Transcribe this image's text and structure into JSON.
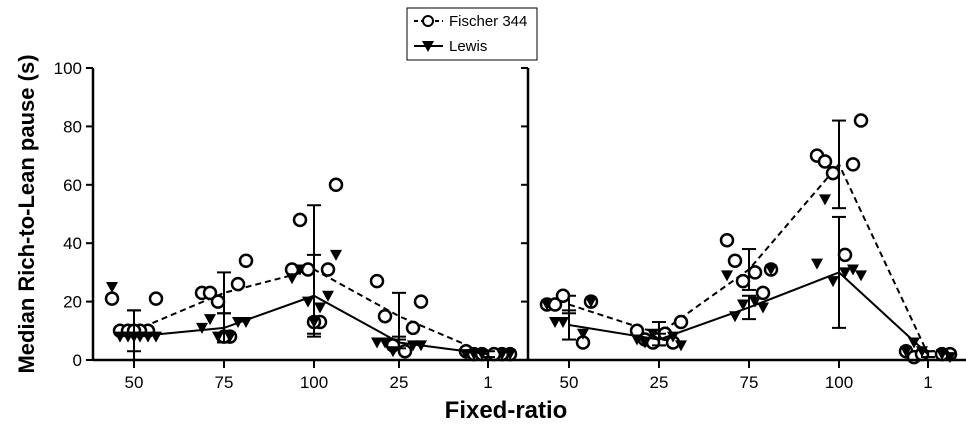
{
  "chart_data": {
    "type": "scatter",
    "ylabel": "Median Rich-to-Lean pause (s)",
    "xlabel": "Fixed-ratio",
    "ylim": [
      0,
      100
    ],
    "yticks": [
      0,
      20,
      40,
      60,
      80,
      100
    ],
    "legend": {
      "placement": "top-center",
      "entries": [
        {
          "name": "Fischer 344",
          "style": "dashed",
          "marker": "open-circle"
        },
        {
          "name": "Lewis",
          "style": "solid",
          "marker": "filled-triangle-down"
        }
      ]
    },
    "panels": [
      {
        "categories": [
          "50",
          "75",
          "100",
          "25",
          "1"
        ],
        "series": [
          {
            "name": "Fischer 344",
            "median": [
              10,
              23,
              31,
              15,
              2
            ],
            "error": [
              7,
              7,
              22,
              8,
              1
            ],
            "points": [
              [
                21,
                21,
                10,
                10,
                10,
                10,
                10
              ],
              [
                23,
                34,
                23,
                26,
                20,
                8,
                8
              ],
              [
                31,
                60,
                48,
                31,
                31,
                13,
                13
              ],
              [
                27,
                20,
                15,
                11,
                5,
                3
              ],
              [
                3,
                2,
                2,
                2,
                2,
                2
              ]
            ]
          },
          {
            "name": "Lewis",
            "median": [
              8,
              11,
              22,
              6,
              2
            ],
            "error": [
              9,
              5,
              14,
              2,
              1
            ],
            "points": [
              [
                25,
                8,
                8,
                8,
                8,
                8,
                8
              ],
              [
                11,
                13,
                14,
                13,
                8,
                8
              ],
              [
                28,
                36,
                31,
                22,
                20,
                18,
                13
              ],
              [
                6,
                5,
                6,
                5,
                3
              ],
              [
                2,
                2,
                2,
                2,
                2
              ]
            ]
          }
        ]
      },
      {
        "categories": [
          "50",
          "25",
          "75",
          "100",
          "1"
        ],
        "series": [
          {
            "name": "Fischer 344",
            "median": [
              19,
              9,
              31,
              67,
              2
            ],
            "error": [
              3,
              4,
              7,
              15,
              1
            ],
            "points": [
              [
                19,
                20,
                19,
                6,
                22
              ],
              [
                10,
                13,
                7,
                6,
                6,
                9
              ],
              [
                41,
                31,
                34,
                23,
                27,
                30
              ],
              [
                70,
                82,
                68,
                67,
                64,
                36
              ],
              [
                3,
                2,
                1,
                2,
                2
              ]
            ]
          },
          {
            "name": "Lewis",
            "median": [
              12,
              7,
              18,
              30,
              2
            ],
            "error": [
              5,
              2,
              4,
              19,
              1
            ],
            "points": [
              [
                19,
                20,
                13,
                9,
                13
              ],
              [
                7,
                5,
                6,
                8,
                9
              ],
              [
                29,
                31,
                15,
                18,
                19,
                20
              ],
              [
                33,
                29,
                55,
                31,
                27,
                30
              ],
              [
                3,
                1,
                6,
                2,
                3
              ]
            ]
          }
        ]
      }
    ]
  }
}
